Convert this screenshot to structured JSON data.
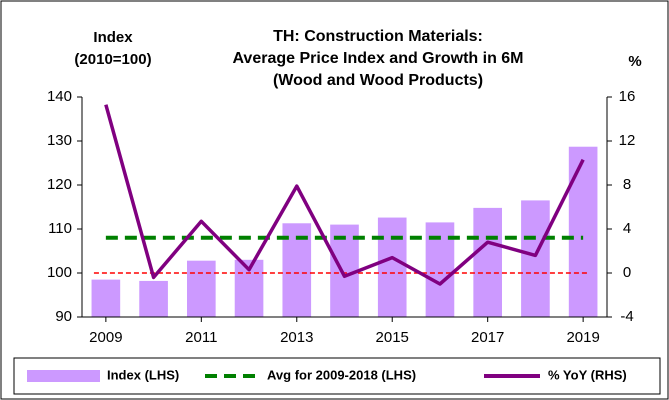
{
  "chart_data": {
    "type": "bar",
    "title": [
      "TH: Construction Materials:",
      "Average Price Index and Growth in  6M",
      "(Wood and Wood Products)"
    ],
    "y_label": [
      "Index",
      "(2010=100)"
    ],
    "y2_label": "%",
    "x": [
      2009,
      2010,
      2011,
      2012,
      2013,
      2014,
      2015,
      2016,
      2017,
      2018,
      2019
    ],
    "xlim": [
      2008.5,
      2019.5
    ],
    "xticks": [
      2009,
      2011,
      2013,
      2015,
      2017,
      2019
    ],
    "series": [
      {
        "name": "Index (LHS)",
        "type": "bar",
        "color": "#cc99ff",
        "values": [
          98.5,
          98.2,
          102.8,
          103,
          111.3,
          111,
          112.6,
          111.5,
          114.8,
          116.5,
          128.7
        ]
      },
      {
        "name": "Avg for 2009-2018 (LHS)",
        "type": "dashed",
        "color": "#008000",
        "values": [
          108,
          108,
          108,
          108,
          108,
          108,
          108,
          108,
          108,
          108,
          108
        ]
      },
      {
        "name": "% YoY (RHS)",
        "type": "line",
        "axis": "y2",
        "color": "#800080",
        "values": [
          15.3,
          -0.4,
          4.7,
          0.3,
          7.9,
          -0.3,
          1.4,
          -1.0,
          2.8,
          1.6,
          10.3
        ]
      }
    ],
    "reference_line": {
      "value": 100,
      "color": "#ff0000"
    },
    "ylim": [
      90,
      140
    ],
    "yticks": [
      90,
      100,
      110,
      120,
      130,
      140
    ],
    "y2lim": [
      -4,
      16
    ],
    "y2ticks": [
      -4,
      0,
      4,
      8,
      12,
      16
    ],
    "legend": "bottom"
  }
}
